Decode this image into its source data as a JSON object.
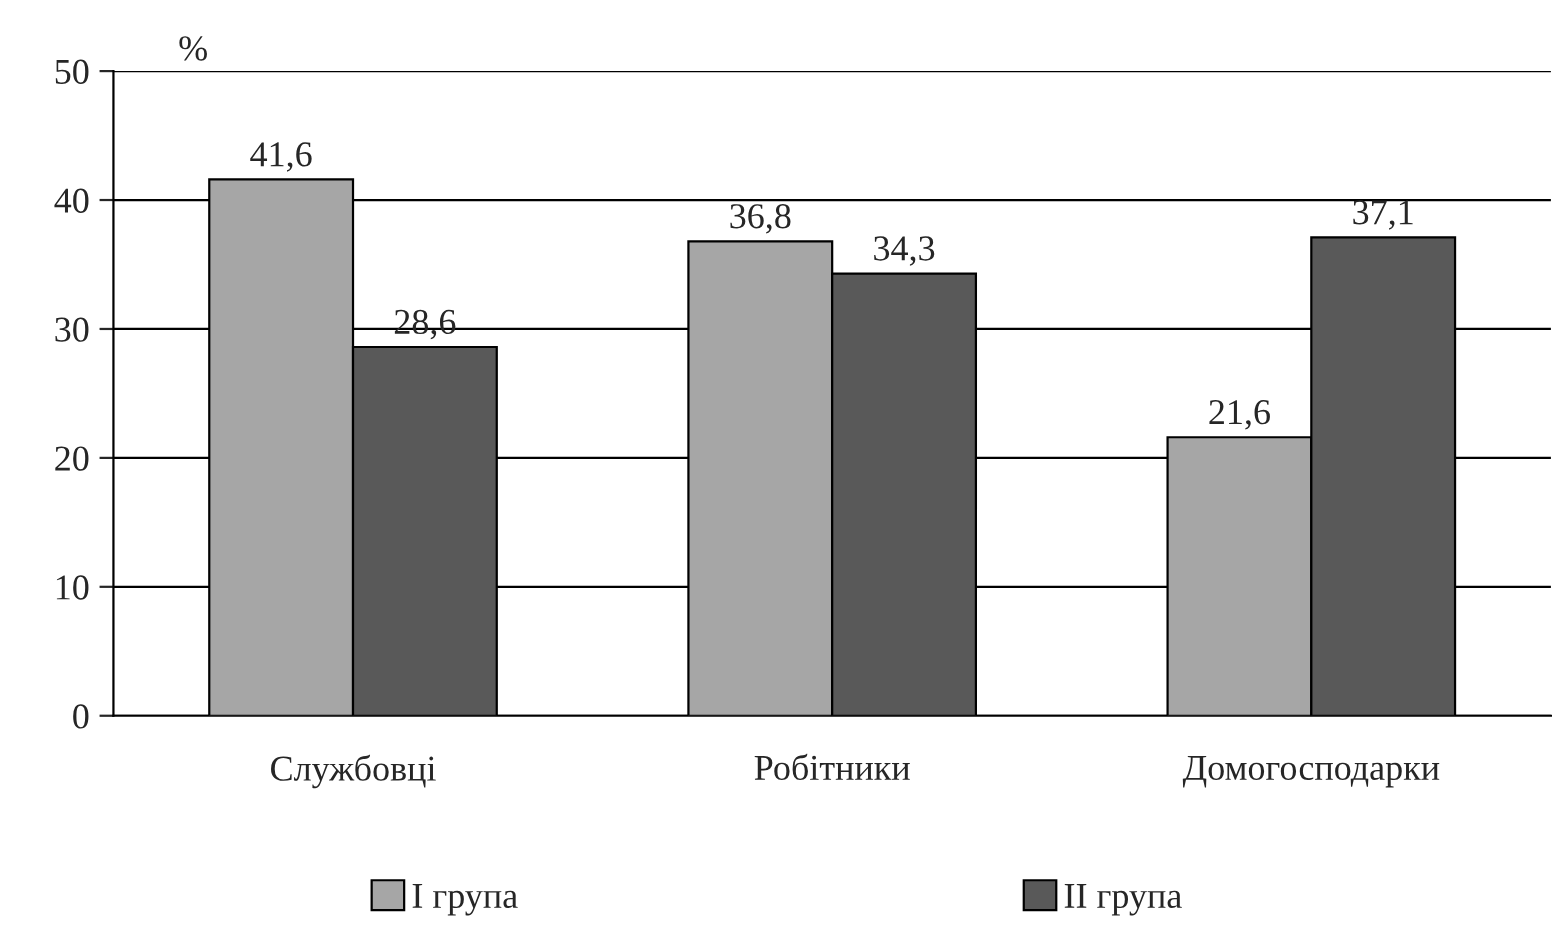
{
  "chart_data": {
    "type": "bar",
    "ylabel": "%",
    "categories": [
      "Службовці",
      "Робітники",
      "Домогосподарки"
    ],
    "series": [
      {
        "name": "I група",
        "color": "#a6a6a6",
        "values": [
          41.6,
          36.8,
          21.6
        ],
        "value_labels": [
          "41,6",
          "36,8",
          "21,6"
        ]
      },
      {
        "name": "II група",
        "color": "#595959",
        "values": [
          28.6,
          34.3,
          37.1
        ],
        "value_labels": [
          "28,6",
          "34,3",
          "37,1"
        ]
      }
    ],
    "ylim": [
      0,
      50
    ],
    "yticks": [
      0,
      10,
      20,
      30,
      40,
      50
    ],
    "grid": "y",
    "legend": "bottom"
  }
}
